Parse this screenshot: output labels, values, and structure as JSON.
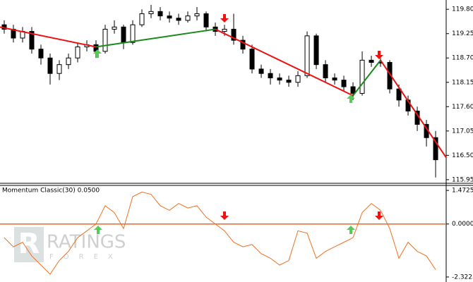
{
  "chart_data": [
    {
      "type": "candlestick",
      "xlim": [
        -0.46,
        48.15
      ],
      "ylim": [
        115.9,
        120.01
      ],
      "yticks": [
        {
          "value": 119.8,
          "label": "119.80"
        },
        {
          "value": 119.25,
          "label": "119.25"
        },
        {
          "value": 118.7,
          "label": "118.70"
        },
        {
          "value": 118.15,
          "label": "118.15"
        },
        {
          "value": 117.6,
          "label": "117.60"
        },
        {
          "value": 117.05,
          "label": "117.05"
        },
        {
          "value": 116.5,
          "label": "116.50"
        },
        {
          "value": 115.95,
          "label": "115.95"
        }
      ],
      "open": [
        119.45,
        119.35,
        119.15,
        119.3,
        118.9,
        118.7,
        118.35,
        118.55,
        118.7,
        118.95,
        119.0,
        118.85,
        119.35,
        119.4,
        119.05,
        119.45,
        119.7,
        119.75,
        119.65,
        119.6,
        119.55,
        119.65,
        119.7,
        119.4,
        119.3,
        119.35,
        119.1,
        118.9,
        118.45,
        118.35,
        118.25,
        118.2,
        118.15,
        118.3,
        119.2,
        118.55,
        118.25,
        118.2,
        118.05,
        117.9,
        118.65,
        118.6,
        118.6,
        118.0,
        117.75,
        117.5,
        117.2,
        116.9
      ],
      "high": [
        119.55,
        119.45,
        119.4,
        119.4,
        119.0,
        118.8,
        118.65,
        118.8,
        119.05,
        119.1,
        119.1,
        119.45,
        119.55,
        119.45,
        119.55,
        119.8,
        119.9,
        119.85,
        119.75,
        119.7,
        119.75,
        119.85,
        119.75,
        119.5,
        119.45,
        119.7,
        119.2,
        119.0,
        118.55,
        118.45,
        118.35,
        118.3,
        118.4,
        119.3,
        119.25,
        118.65,
        118.35,
        118.3,
        118.15,
        118.85,
        118.75,
        118.7,
        118.65,
        118.1,
        117.85,
        117.6,
        117.3,
        117.05
      ],
      "low": [
        119.25,
        119.05,
        119.05,
        118.8,
        118.55,
        118.1,
        118.2,
        118.45,
        118.6,
        118.85,
        118.7,
        118.8,
        119.25,
        118.9,
        119.0,
        119.4,
        119.6,
        119.55,
        119.5,
        119.45,
        119.5,
        119.55,
        119.3,
        119.2,
        119.2,
        119.0,
        118.8,
        118.35,
        118.25,
        118.1,
        118.1,
        118.05,
        118.05,
        118.25,
        118.45,
        118.15,
        118.1,
        117.95,
        117.75,
        117.85,
        118.5,
        118.5,
        117.9,
        117.6,
        117.4,
        117.05,
        116.7,
        116.0
      ],
      "close": [
        119.35,
        119.15,
        119.3,
        118.9,
        118.7,
        118.35,
        118.55,
        118.7,
        118.95,
        119.0,
        118.85,
        119.35,
        119.4,
        119.05,
        119.45,
        119.7,
        119.75,
        119.65,
        119.6,
        119.55,
        119.65,
        119.7,
        119.4,
        119.3,
        119.35,
        119.1,
        118.9,
        118.45,
        118.35,
        118.25,
        118.2,
        118.15,
        118.3,
        119.2,
        118.55,
        118.25,
        118.2,
        118.05,
        117.9,
        118.65,
        118.6,
        118.6,
        118.0,
        117.75,
        117.5,
        117.2,
        116.9,
        116.4
      ],
      "lines": [
        {
          "color": "#ee1111",
          "x": [
            -0.46,
            10
          ],
          "values": [
            119.4,
            118.95
          ]
        },
        {
          "color": "#1a8a1a",
          "x": [
            10,
            23
          ],
          "values": [
            118.95,
            119.35
          ]
        },
        {
          "color": "#ee1111",
          "x": [
            23,
            38
          ],
          "values": [
            119.35,
            117.85
          ]
        },
        {
          "color": "#1a8a1a",
          "x": [
            38,
            41
          ],
          "values": [
            117.85,
            118.65
          ]
        },
        {
          "color": "#ee1111",
          "x": [
            41,
            48.15
          ],
          "values": [
            118.65,
            116.45
          ]
        }
      ]
    },
    {
      "type": "line",
      "title": "Momentum Classic(30) 0.0500",
      "color": "#f07020",
      "level": 0,
      "level_color": "#ff6010",
      "xlim": [
        -0.46,
        48.15
      ],
      "ylim": [
        -2.48,
        1.66
      ],
      "yticks": [
        1.4725,
        {
          "value": 0,
          "label": "0.0000"
        },
        -2.3225
      ],
      "values": [
        -0.6,
        -1.0,
        -0.8,
        -1.4,
        -1.8,
        -2.2,
        -1.6,
        -1.2,
        -0.6,
        -0.3,
        0.0,
        0.8,
        0.5,
        -0.2,
        1.2,
        1.4,
        1.3,
        0.8,
        0.6,
        0.9,
        0.7,
        0.8,
        0.3,
        0.0,
        -0.3,
        -0.8,
        -1.0,
        -0.9,
        -1.3,
        -1.5,
        -1.8,
        -1.6,
        -0.3,
        -0.4,
        -1.5,
        -1.2,
        -1.0,
        -0.8,
        -0.6,
        0.5,
        0.9,
        0.6,
        -0.2,
        -1.5,
        -0.8,
        -1.2,
        -1.4,
        -2.0
      ]
    }
  ],
  "watermark": {
    "title": "RATINGS",
    "subtitle": "FOREX"
  }
}
